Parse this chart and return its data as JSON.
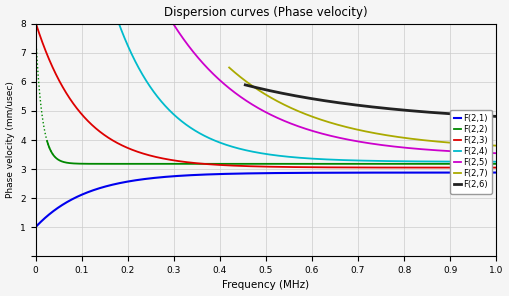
{
  "title": "Dispersion curves (Phase velocity)",
  "xlabel": "Frequency (MHz)",
  "ylabel": "Phase velocity (mm/usec)",
  "xlim": [
    0,
    1.0
  ],
  "ylim": [
    0,
    8
  ],
  "yticks": [
    0,
    1,
    2,
    3,
    4,
    5,
    6,
    7,
    8
  ],
  "xticks": [
    0,
    0.1,
    0.2,
    0.3,
    0.4,
    0.5,
    0.6,
    0.7,
    0.8,
    0.9,
    1.0
  ],
  "legend_entries": [
    "F(2,1)",
    "F(2,2)",
    "F(2,3)",
    "F(2,4)",
    "F(2,5)",
    "F(2,7)",
    "F(2,6)"
  ],
  "colors": {
    "F(2,1)": "#0000ee",
    "F(2,2)": "#008800",
    "F(2,3)": "#dd0000",
    "F(2,4)": "#00bbcc",
    "F(2,5)": "#cc00cc",
    "F(2,7)": "#aaaa00",
    "F(2,6)": "#222222"
  },
  "background_color": "#f5f5f5",
  "grid_color": "#cccccc"
}
